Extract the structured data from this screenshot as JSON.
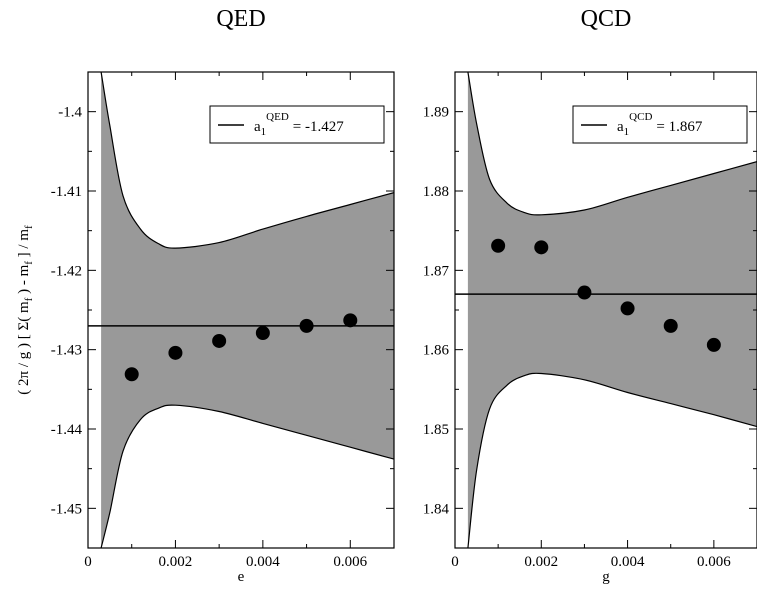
{
  "figure": {
    "ylabel_left": "( 2π / g ) [ Σ( m",
    "ylabel_sub1": "f",
    "ylabel_mid": " ) - m",
    "ylabel_sub2": "f",
    "ylabel_end": " ] / m",
    "ylabel_sub3": "f"
  },
  "chart_data": [
    {
      "type": "scatter",
      "title": "QED",
      "xlabel": "e",
      "ylabel": "( 2π / g ) [ Σ( m_f ) - m_f ] / m_f",
      "xlim": [
        0,
        0.007
      ],
      "ylim": [
        -1.455,
        -1.395
      ],
      "xticks": [
        0,
        0.002,
        0.004,
        0.006
      ],
      "xtick_labels": [
        "0",
        "0.002",
        "0.004",
        "0.006"
      ],
      "yticks": [
        -1.45,
        -1.44,
        -1.43,
        -1.42,
        -1.41,
        -1.4
      ],
      "ytick_labels": [
        "-1.45",
        "-1.44",
        "-1.43",
        "-1.42",
        "-1.41",
        "-1.4"
      ],
      "points": {
        "x": [
          0.001,
          0.002,
          0.003,
          0.004,
          0.005,
          0.006
        ],
        "y": [
          -1.4331,
          -1.4304,
          -1.4289,
          -1.4279,
          -1.427,
          -1.4263
        ]
      },
      "fit_line": {
        "y": -1.427
      },
      "band": {
        "upper": [
          [
            0.0003,
            -1.395
          ],
          [
            0.0005,
            -1.4018
          ],
          [
            0.0008,
            -1.4106
          ],
          [
            0.0012,
            -1.4148
          ],
          [
            0.0016,
            -1.4166
          ],
          [
            0.002,
            -1.4172
          ],
          [
            0.003,
            -1.4165
          ],
          [
            0.004,
            -1.4148
          ],
          [
            0.005,
            -1.4132
          ],
          [
            0.006,
            -1.4117
          ],
          [
            0.007,
            -1.4102
          ]
        ],
        "lower": [
          [
            0.0003,
            -1.455
          ],
          [
            0.0005,
            -1.4505
          ],
          [
            0.0008,
            -1.4428
          ],
          [
            0.0012,
            -1.4388
          ],
          [
            0.0016,
            -1.4374
          ],
          [
            0.002,
            -1.437
          ],
          [
            0.003,
            -1.4378
          ],
          [
            0.004,
            -1.4393
          ],
          [
            0.005,
            -1.4408
          ],
          [
            0.006,
            -1.4423
          ],
          [
            0.007,
            -1.4438
          ]
        ]
      },
      "legend": {
        "symbol": "a",
        "sub": "1",
        "sup": "QED",
        "text": "= -1.427",
        "placement": "top-right"
      }
    },
    {
      "type": "scatter",
      "title": "QCD",
      "xlabel": "g",
      "ylabel": "",
      "xlim": [
        0,
        0.007
      ],
      "ylim": [
        1.835,
        1.895
      ],
      "xticks": [
        0,
        0.002,
        0.004,
        0.006
      ],
      "xtick_labels": [
        "0",
        "0.002",
        "0.004",
        "0.006"
      ],
      "yticks": [
        1.84,
        1.85,
        1.86,
        1.87,
        1.88,
        1.89
      ],
      "ytick_labels": [
        "1.84",
        "1.85",
        "1.86",
        "1.87",
        "1.88",
        "1.89"
      ],
      "points": {
        "x": [
          0.001,
          0.002,
          0.003,
          0.004,
          0.005,
          0.006
        ],
        "y": [
          1.8731,
          1.8729,
          1.8672,
          1.8652,
          1.863,
          1.8606
        ]
      },
      "fit_line": {
        "y": 1.867
      },
      "band": {
        "upper": [
          [
            0.0003,
            1.895
          ],
          [
            0.0005,
            1.8885
          ],
          [
            0.0008,
            1.8815
          ],
          [
            0.0012,
            1.8785
          ],
          [
            0.0016,
            1.8773
          ],
          [
            0.002,
            1.877
          ],
          [
            0.003,
            1.8776
          ],
          [
            0.004,
            1.8792
          ],
          [
            0.005,
            1.8807
          ],
          [
            0.006,
            1.8822
          ],
          [
            0.007,
            1.8837
          ]
        ],
        "lower": [
          [
            0.0003,
            1.835
          ],
          [
            0.0005,
            1.8448
          ],
          [
            0.0008,
            1.8525
          ],
          [
            0.0012,
            1.8555
          ],
          [
            0.0016,
            1.8567
          ],
          [
            0.002,
            1.857
          ],
          [
            0.003,
            1.8562
          ],
          [
            0.004,
            1.8546
          ],
          [
            0.005,
            1.8532
          ],
          [
            0.006,
            1.8518
          ],
          [
            0.007,
            1.8503
          ]
        ]
      },
      "legend": {
        "symbol": "a",
        "sub": "1",
        "sup": "QCD",
        "text": "= 1.867",
        "placement": "top-right"
      }
    }
  ]
}
